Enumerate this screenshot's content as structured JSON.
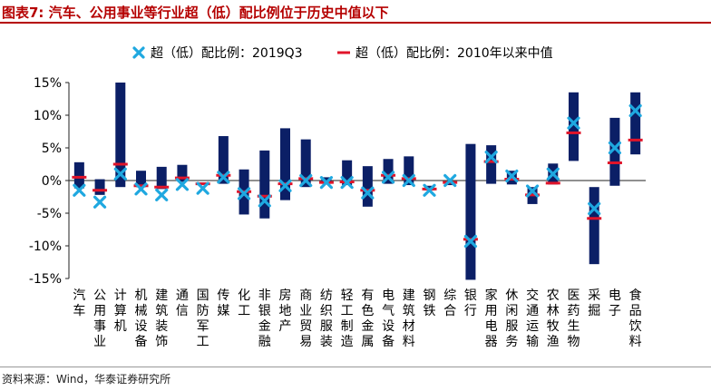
{
  "title": "图表7:  汽车、公用事业等行业超（低）配比例位于历史中值以下",
  "source": "资料来源：Wind，华泰证券研究所",
  "colors": {
    "bar": "#0b1f66",
    "cross": "#1fa8e0",
    "median": "#e0142a",
    "title": "#b50000"
  },
  "chart_data": {
    "type": "bar",
    "legend": [
      {
        "name": "超（低）配比例：2019Q3",
        "marker": "cross"
      },
      {
        "name": "超（低）配比例：2010年以来中值",
        "marker": "dash"
      }
    ],
    "legend_placement": "top",
    "ylim": [
      -15,
      15
    ],
    "yticks": [
      15,
      10,
      5,
      0,
      -5,
      -10,
      -15
    ],
    "ytick_labels": [
      "15%",
      "10%",
      "5%",
      "0%",
      "-5%",
      "-10%",
      "-15%"
    ],
    "categories": [
      "汽车",
      "公用事业",
      "计算机",
      "机械设备",
      "建筑装饰",
      "通信",
      "国防军工",
      "传媒",
      "化工",
      "非银金融",
      "房地产",
      "商业贸易",
      "纺织服装",
      "轻工制造",
      "有色金属",
      "电气设备",
      "建筑材料",
      "钢铁",
      "综合",
      "银行",
      "家用电器",
      "休闲服务",
      "交通运输",
      "农林牧渔",
      "医药生物",
      "采掘",
      "电子",
      "食品饮料"
    ],
    "range_low": [
      -1.2,
      -2.2,
      -1.0,
      -1.0,
      -1.3,
      -0.2,
      -0.5,
      -0.5,
      -5.2,
      -5.8,
      -3.0,
      -1.0,
      -0.5,
      -0.7,
      -4.0,
      -0.5,
      -0.7,
      -1.5,
      -0.7,
      -15.2,
      -0.5,
      -0.6,
      -3.6,
      -0.6,
      3.0,
      -12.8,
      -0.8,
      4.0
    ],
    "range_high": [
      2.8,
      0.2,
      15.0,
      1.5,
      2.1,
      2.4,
      -0.3,
      6.8,
      1.7,
      4.6,
      8.0,
      6.3,
      0.5,
      3.1,
      2.2,
      3.3,
      3.7,
      -0.8,
      -0.3,
      5.6,
      5.4,
      1.5,
      -1.0,
      2.6,
      13.5,
      -1.0,
      9.6,
      13.5
    ],
    "current": [
      -1.5,
      -3.3,
      1.0,
      -1.3,
      -2.2,
      -0.6,
      -1.2,
      0.5,
      -2.0,
      -3.1,
      -0.8,
      0.0,
      -0.3,
      -0.3,
      -1.9,
      0.5,
      0.0,
      -1.5,
      0.0,
      -9.3,
      3.6,
      0.7,
      -1.6,
      1.0,
      8.8,
      -4.3,
      5.0,
      10.7
    ],
    "median": [
      0.5,
      -1.5,
      2.5,
      -0.8,
      -1.0,
      0.4,
      -0.5,
      0.8,
      -1.7,
      -2.4,
      -0.5,
      0.3,
      -0.3,
      -0.2,
      -1.5,
      0.8,
      0.3,
      -1.3,
      -0.3,
      -9.0,
      2.9,
      0.2,
      -2.2,
      -0.4,
      7.3,
      -5.8,
      2.7,
      6.2
    ]
  }
}
